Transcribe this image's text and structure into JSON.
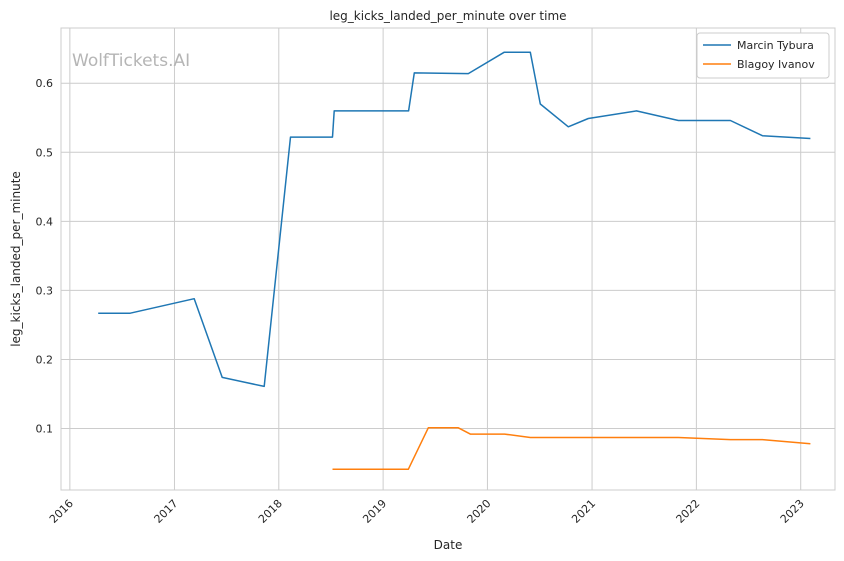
{
  "watermark": "WolfTickets.AI",
  "chart_data": {
    "type": "line",
    "title": "leg_kicks_landed_per_minute over time",
    "xlabel": "Date",
    "ylabel": "leg_kicks_landed_per_minute",
    "x_ticks": [
      "2016",
      "2017",
      "2018",
      "2019",
      "2020",
      "2021",
      "2022",
      "2023"
    ],
    "y_ticks": [
      "0.1",
      "0.2",
      "0.3",
      "0.4",
      "0.5",
      "0.6"
    ],
    "xlim": [
      "2015-12-01",
      "2023-05-01"
    ],
    "ylim": [
      0.011,
      0.68
    ],
    "grid": true,
    "legend_position": "top-right",
    "series": [
      {
        "name": "Marcin Tybura",
        "color": "#1f77b4",
        "points": [
          [
            "2016-04-09",
            0.267
          ],
          [
            "2016-07-30",
            0.267
          ],
          [
            "2017-03-11",
            0.288
          ],
          [
            "2017-06-17",
            0.174
          ],
          [
            "2017-11-11",
            0.161
          ],
          [
            "2018-02-11",
            0.522
          ],
          [
            "2018-07-08",
            0.522
          ],
          [
            "2018-07-14",
            0.56
          ],
          [
            "2019-03-31",
            0.56
          ],
          [
            "2019-04-20",
            0.615
          ],
          [
            "2019-10-26",
            0.614
          ],
          [
            "2020-02-29",
            0.645
          ],
          [
            "2020-05-30",
            0.645
          ],
          [
            "2020-07-04",
            0.57
          ],
          [
            "2020-10-10",
            0.537
          ],
          [
            "2020-12-19",
            0.549
          ],
          [
            "2021-06-05",
            0.56
          ],
          [
            "2021-10-30",
            0.546
          ],
          [
            "2022-03-19",
            0.546
          ],
          [
            "2022-04-30",
            0.546
          ],
          [
            "2022-08-20",
            0.524
          ],
          [
            "2023-02-04",
            0.52
          ]
        ]
      },
      {
        "name": "Blagoy Ivanov",
        "color": "#ff7f0e",
        "points": [
          [
            "2018-07-08",
            0.041
          ],
          [
            "2019-03-30",
            0.041
          ],
          [
            "2019-06-08",
            0.101
          ],
          [
            "2019-09-21",
            0.101
          ],
          [
            "2019-11-02",
            0.092
          ],
          [
            "2020-03-01",
            0.092
          ],
          [
            "2020-05-30",
            0.087
          ],
          [
            "2021-10-30",
            0.087
          ],
          [
            "2022-04-30",
            0.084
          ],
          [
            "2022-08-20",
            0.084
          ],
          [
            "2023-02-04",
            0.078
          ]
        ]
      }
    ]
  }
}
